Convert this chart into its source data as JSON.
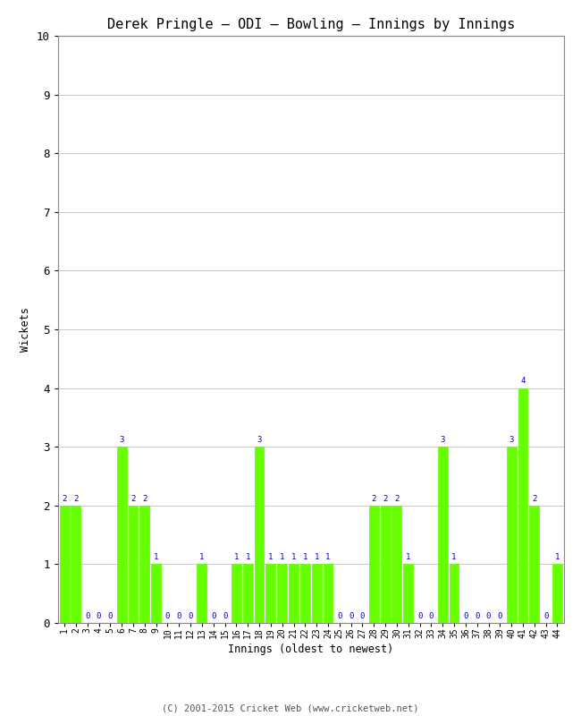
{
  "title": "Derek Pringle – ODI – Bowling – Innings by Innings",
  "xlabel": "Innings (oldest to newest)",
  "ylabel": "Wickets",
  "footer": "(C) 2001-2015 Cricket Web (www.cricketweb.net)",
  "ylim": [
    0,
    10
  ],
  "yticks": [
    0,
    1,
    2,
    3,
    4,
    5,
    6,
    7,
    8,
    9,
    10
  ],
  "bar_color": "#66ff00",
  "label_color": "#0000cc",
  "background_color": "#ffffff",
  "grid_color": "#cccccc",
  "innings": [
    1,
    2,
    3,
    4,
    5,
    6,
    7,
    8,
    9,
    10,
    11,
    12,
    13,
    14,
    15,
    16,
    17,
    18,
    19,
    20,
    21,
    22,
    23,
    24,
    25,
    26,
    27,
    28,
    29,
    30,
    31,
    32,
    33,
    34,
    35,
    36,
    37,
    38,
    39,
    40,
    41,
    42,
    43,
    44
  ],
  "wickets": [
    2,
    2,
    0,
    0,
    0,
    3,
    2,
    2,
    1,
    0,
    0,
    0,
    1,
    0,
    0,
    1,
    1,
    3,
    1,
    1,
    1,
    1,
    1,
    1,
    0,
    0,
    0,
    2,
    2,
    2,
    1,
    0,
    0,
    3,
    1,
    0,
    0,
    0,
    0,
    3,
    4,
    2,
    0,
    1
  ]
}
